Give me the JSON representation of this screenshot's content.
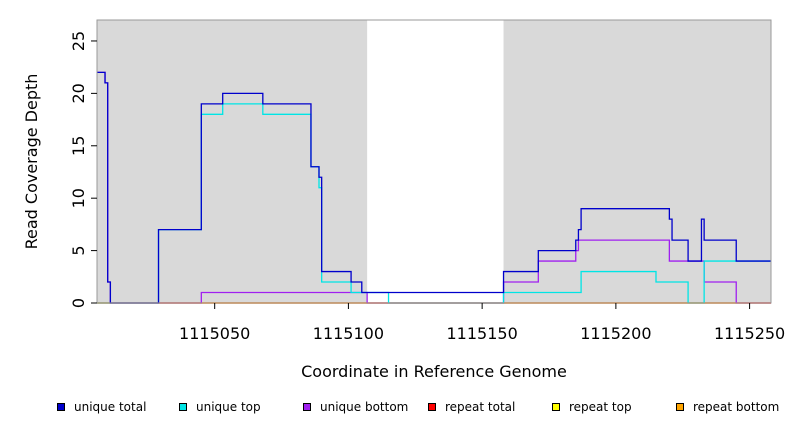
{
  "chart_data": {
    "type": "line",
    "title": "",
    "xlabel": "Coordinate in Reference Genome",
    "ylabel": "Read Coverage Depth",
    "xlim": [
      1115006,
      1115258
    ],
    "ylim": [
      0,
      27
    ],
    "x_ticks": [
      1115050,
      1115100,
      1115150,
      1115200,
      1115250
    ],
    "x_tick_labels": [
      "1115050",
      "1115100",
      "1115150",
      "1115200",
      "1115250"
    ],
    "y_ticks": [
      0,
      5,
      10,
      15,
      20,
      25
    ],
    "y_tick_labels": [
      "0",
      "5",
      "10",
      "15",
      "20",
      "25"
    ],
    "grid": false,
    "step": true,
    "shaded_regions": [
      {
        "x": [
          1115006,
          1115107
        ],
        "color": "#d9d9d9"
      },
      {
        "x": [
          1115158,
          1115258
        ],
        "color": "#d9d9d9"
      }
    ],
    "legend_position": "bottom",
    "series": [
      {
        "name": "unique total",
        "color": "#0000cc",
        "x": [
          1115006,
          1115009,
          1115010,
          1115011,
          1115012,
          1115029,
          1115045,
          1115053,
          1115068,
          1115086,
          1115089,
          1115090,
          1115101,
          1115105,
          1115107,
          1115158,
          1115171,
          1115185,
          1115186,
          1115187,
          1115220,
          1115221,
          1115227,
          1115232,
          1115233,
          1115245,
          1115258
        ],
        "y": [
          22,
          21,
          2,
          0,
          0,
          7,
          19,
          20,
          19,
          13,
          12,
          3,
          2,
          1,
          1,
          3,
          5,
          6,
          7,
          9,
          8,
          6,
          4,
          8,
          6,
          4,
          4
        ]
      },
      {
        "name": "unique top",
        "color": "#00e5e5",
        "x": [
          1115006,
          1115011,
          1115012,
          1115029,
          1115045,
          1115053,
          1115068,
          1115086,
          1115089,
          1115090,
          1115101,
          1115107,
          1115115,
          1115158,
          1115171,
          1115187,
          1115215,
          1115227,
          1115232,
          1115233,
          1115245,
          1115258
        ],
        "y": [
          0,
          0,
          0,
          7,
          18,
          19,
          18,
          13,
          11,
          2,
          1,
          1,
          0,
          1,
          1,
          3,
          2,
          0,
          0,
          4,
          4,
          4
        ]
      },
      {
        "name": "unique bottom",
        "color": "#a020f0",
        "x": [
          1115006,
          1115009,
          1115010,
          1115011,
          1115012,
          1115045,
          1115105,
          1115107,
          1115158,
          1115171,
          1115185,
          1115186,
          1115220,
          1115227,
          1115232,
          1115233,
          1115245,
          1115258
        ],
        "y": [
          22,
          21,
          2,
          0,
          0,
          1,
          1,
          0,
          2,
          4,
          5,
          6,
          4,
          4,
          4,
          2,
          0,
          0
        ]
      },
      {
        "name": "repeat total",
        "color": "#ff0000",
        "x": [
          1115006,
          1115258
        ],
        "y": [
          0,
          0
        ]
      },
      {
        "name": "repeat top",
        "color": "#ffff00",
        "x": [
          1115006,
          1115258
        ],
        "y": [
          0,
          0
        ]
      },
      {
        "name": "repeat bottom",
        "color": "#ffa500",
        "x": [
          1115006,
          1115258
        ],
        "y": [
          0,
          0
        ]
      }
    ]
  }
}
